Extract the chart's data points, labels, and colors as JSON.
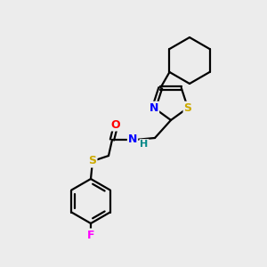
{
  "bg_color": "#ececec",
  "bond_color": "#000000",
  "atom_colors": {
    "N": "#0000ff",
    "O": "#ff0000",
    "S_thiazole": "#ccaa00",
    "S_thioether": "#ccaa00",
    "F": "#ff00ff",
    "H": "#008888"
  },
  "figsize": [
    3.0,
    3.0
  ],
  "dpi": 100
}
